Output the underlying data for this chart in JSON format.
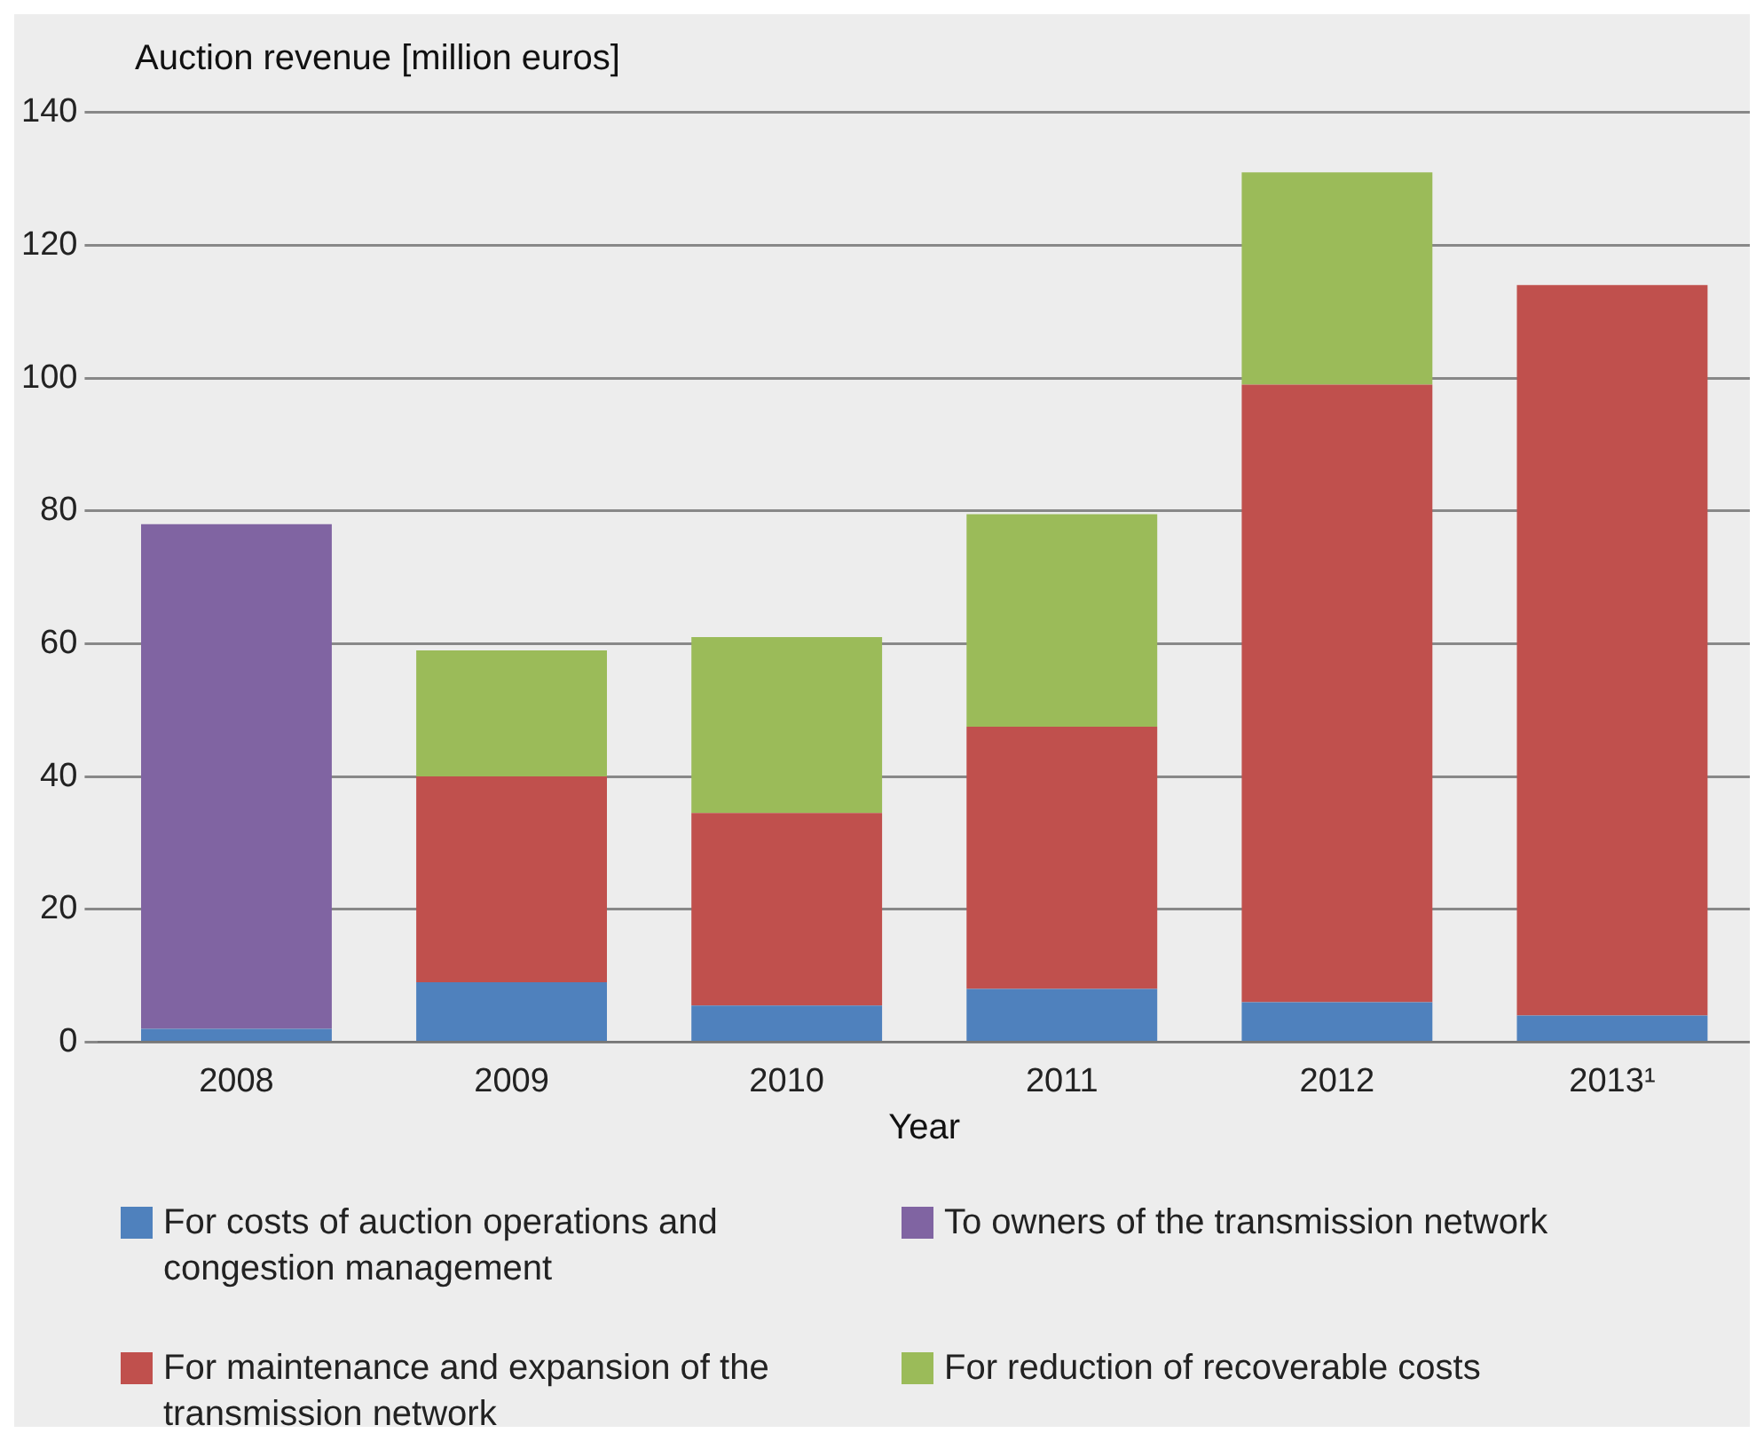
{
  "chart_data": {
    "type": "bar",
    "stacked": true,
    "ylabel": "Auction revenue [million euros]",
    "xlabel": "Year",
    "categories": [
      "2008",
      "2009",
      "2010",
      "2011",
      "2012",
      "2013¹"
    ],
    "series": [
      {
        "name": "For costs of auction operations and congestion management",
        "color": "#4f81bd",
        "values": [
          2,
          9,
          5.5,
          8,
          6,
          4
        ]
      },
      {
        "name": "To owners of the transmission network",
        "color": "#8064a2",
        "values": [
          76,
          null,
          null,
          null,
          null,
          null
        ]
      },
      {
        "name": "For maintenance and expansion of the transmission network",
        "color": "#c0504d",
        "values": [
          null,
          31,
          29,
          39.5,
          93,
          110
        ]
      },
      {
        "name": "For reduction of recoverable costs",
        "color": "#9bbb59",
        "values": [
          null,
          19,
          26.5,
          32,
          32,
          null
        ]
      }
    ],
    "ylim": [
      0,
      140
    ],
    "yticks": [
      0,
      20,
      40,
      60,
      80,
      100,
      120,
      140
    ],
    "grid": "y",
    "legend": "bottom"
  }
}
